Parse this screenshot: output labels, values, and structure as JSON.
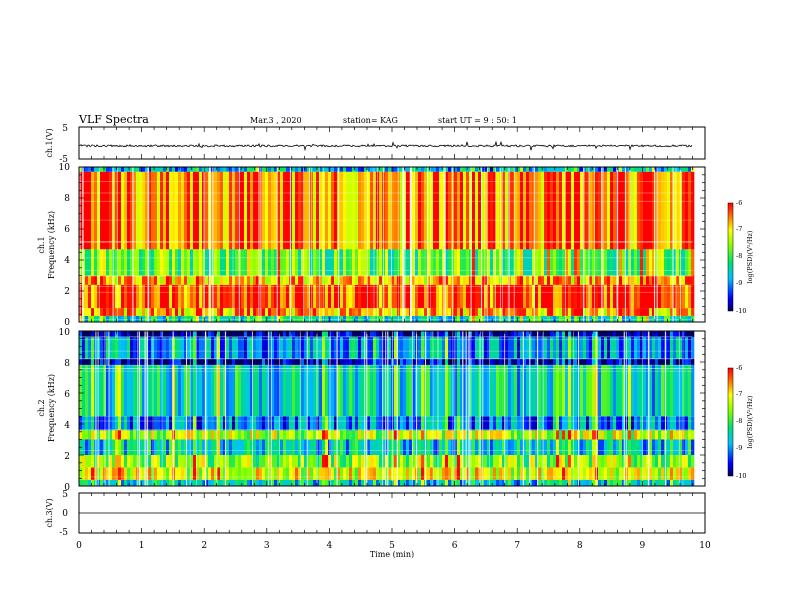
{
  "header": {
    "title": "VLF Spectra",
    "date": "Mar.3 , 2020",
    "station": "station= KAG",
    "start": "start  UT =   9 : 50: 1"
  },
  "chart_data": [
    {
      "type": "line",
      "panel": "ch1-waveform",
      "ylabel": "ch.1(V)",
      "ylim": [
        -5,
        5
      ],
      "yticks": [
        "5",
        "-5"
      ],
      "xlim": [
        0,
        10
      ],
      "baseline": -0.9
    },
    {
      "type": "heatmap",
      "panel": "ch1-spectrogram",
      "ylabel": "ch.1\nFrequency (kHz)",
      "ylim": [
        0,
        10
      ],
      "xlim": [
        0,
        10
      ],
      "data_end_min": 9.8,
      "yticks": [
        "0",
        "2",
        "4",
        "6",
        "8",
        "10"
      ],
      "colorbar": {
        "label": "log(PSD)(V²/Hz)",
        "range": [
          -10,
          -6
        ],
        "ticks": [
          "-6",
          "-7",
          "-8",
          "-9",
          "-10"
        ]
      },
      "levels": [
        {
          "f0": 0.0,
          "f1": 0.4,
          "level": -8.3
        },
        {
          "f0": 0.4,
          "f1": 0.9,
          "level": -6.7
        },
        {
          "f0": 0.9,
          "f1": 2.4,
          "level": -6.3
        },
        {
          "f0": 2.4,
          "f1": 3.0,
          "level": -6.8
        },
        {
          "f0": 3.0,
          "f1": 4.7,
          "level": -7.8
        },
        {
          "f0": 4.7,
          "f1": 9.7,
          "level": -6.5
        },
        {
          "f0": 9.7,
          "f1": 10.0,
          "level": -8.8
        }
      ]
    },
    {
      "type": "heatmap",
      "panel": "ch2-spectrogram",
      "ylabel": "ch.2\nFrequency (kHz)",
      "ylim": [
        0,
        10
      ],
      "xlim": [
        0,
        10
      ],
      "data_end_min": 9.8,
      "yticks": [
        "0",
        "2",
        "4",
        "6",
        "8",
        "10"
      ],
      "colorbar": {
        "label": "log(PSD)(V²/Hz)",
        "range": [
          -10,
          -6
        ],
        "ticks": [
          "-6",
          "-7",
          "-8",
          "-9",
          "-10"
        ]
      },
      "levels": [
        {
          "f0": 0.0,
          "f1": 0.4,
          "level": -8.6
        },
        {
          "f0": 0.4,
          "f1": 1.2,
          "level": -7.2
        },
        {
          "f0": 1.2,
          "f1": 2.0,
          "level": -7.6
        },
        {
          "f0": 2.0,
          "f1": 3.0,
          "level": -8.6
        },
        {
          "f0": 3.0,
          "f1": 3.6,
          "level": -7.4
        },
        {
          "f0": 3.6,
          "f1": 4.5,
          "level": -9.0
        },
        {
          "f0": 4.5,
          "f1": 7.8,
          "level": -8.5
        },
        {
          "f0": 7.8,
          "f1": 8.2,
          "level": -9.8
        },
        {
          "f0": 8.2,
          "f1": 9.6,
          "level": -8.9
        },
        {
          "f0": 9.6,
          "f1": 10.0,
          "level": -9.9
        }
      ]
    },
    {
      "type": "line",
      "panel": "ch3-waveform",
      "ylabel": "ch.3(V)",
      "ylim": [
        -5,
        5
      ],
      "yticks": [
        "5",
        "0",
        "-5"
      ],
      "xlim": [
        0,
        10
      ],
      "baseline": 0
    }
  ],
  "xaxis": {
    "label": "Time  (min)",
    "ticks": [
      "0",
      "1",
      "2",
      "3",
      "4",
      "5",
      "6",
      "7",
      "8",
      "9",
      "10"
    ]
  }
}
